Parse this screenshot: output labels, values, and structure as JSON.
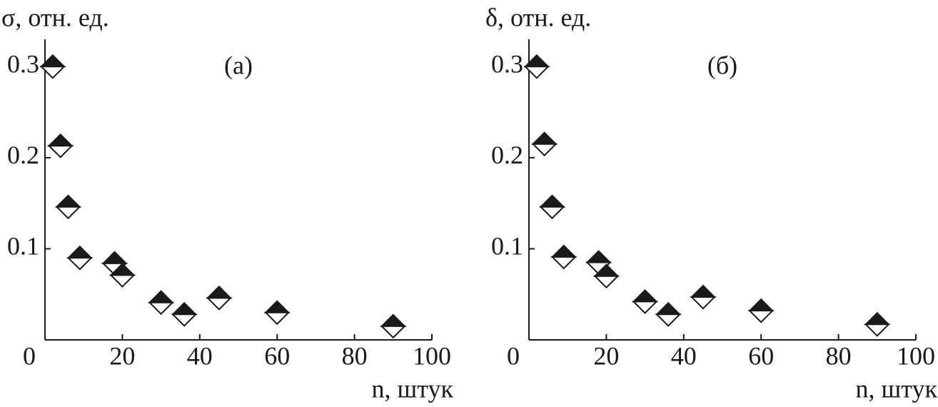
{
  "chart_data": [
    {
      "type": "scatter",
      "y_label": "σ, отн. ед.",
      "x_label": "n, штук",
      "annotation": "(а)",
      "x": [
        2,
        4,
        6,
        9,
        18,
        20,
        30,
        36,
        45,
        60,
        90
      ],
      "values": [
        0.3,
        0.213,
        0.146,
        0.09,
        0.084,
        0.071,
        0.041,
        0.028,
        0.046,
        0.03,
        0.015
      ],
      "xlim": [
        0,
        100
      ],
      "ylim": [
        0,
        0.33
      ],
      "xticks": [
        0,
        20,
        40,
        60,
        80,
        100
      ],
      "yticks": [
        0.1,
        0.2,
        0.3
      ],
      "color": "#1a1a1a"
    },
    {
      "type": "scatter",
      "y_label": "δ, отн. ед.",
      "x_label": "n, штук",
      "annotation": "(б)",
      "x": [
        2,
        4,
        6,
        9,
        18,
        20,
        30,
        36,
        45,
        60,
        90
      ],
      "values": [
        0.3,
        0.215,
        0.146,
        0.091,
        0.085,
        0.07,
        0.042,
        0.028,
        0.047,
        0.032,
        0.017
      ],
      "xlim": [
        0,
        100
      ],
      "ylim": [
        0,
        0.33
      ],
      "xticks": [
        0,
        20,
        40,
        60,
        80,
        100
      ],
      "yticks": [
        0.1,
        0.2,
        0.3
      ],
      "color": "#1a1a1a"
    }
  ]
}
